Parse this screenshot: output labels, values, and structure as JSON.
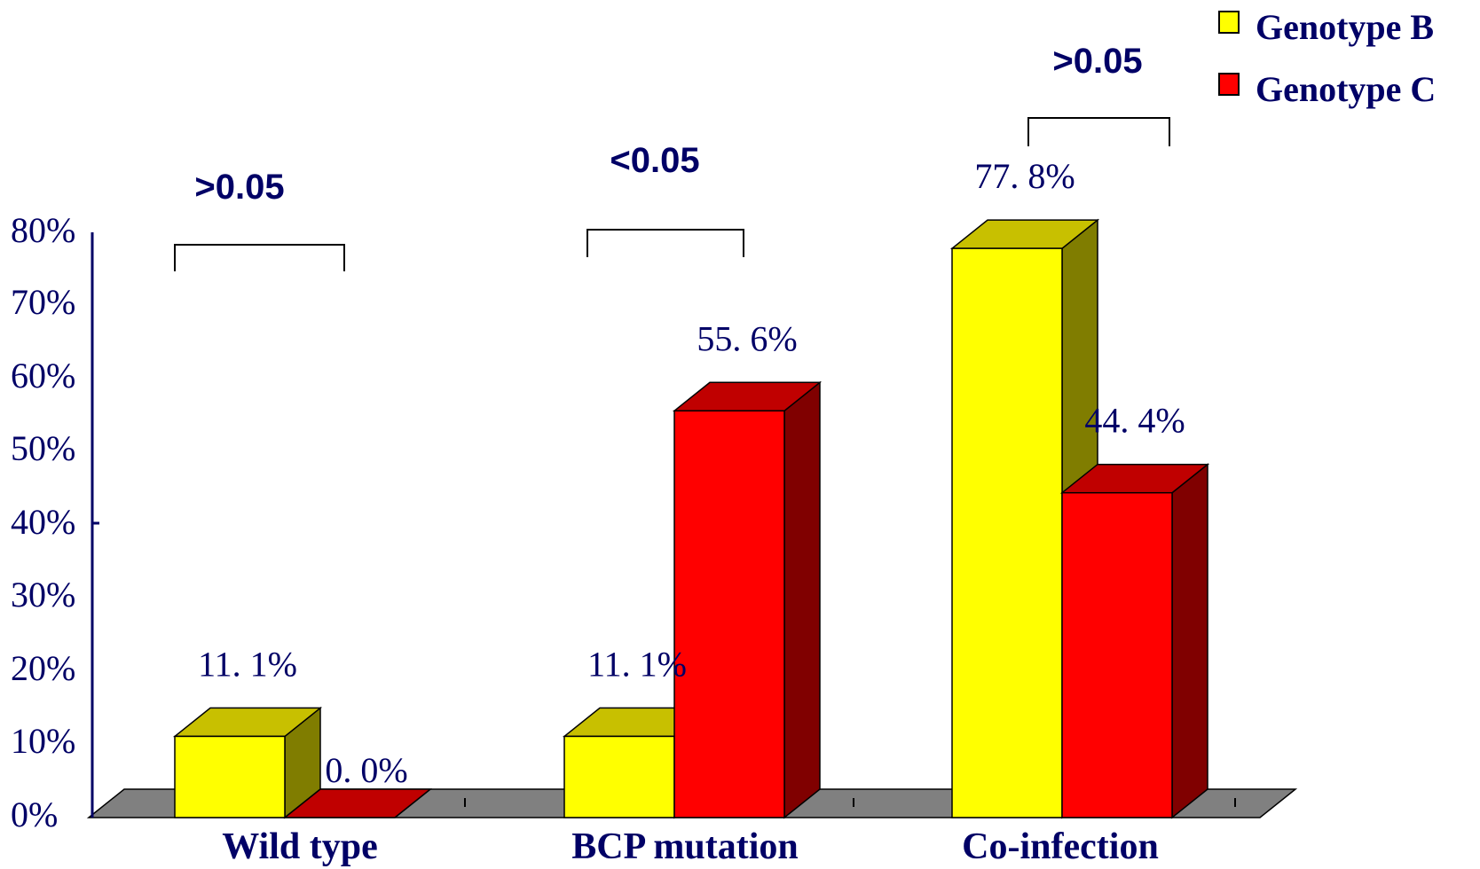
{
  "colors": {
    "genotype_b": "#ffff00",
    "genotype_b_top": "#c8c000",
    "genotype_b_side": "#807d00",
    "genotype_c": "#ff0000",
    "genotype_c_top": "#c00000",
    "genotype_c_side": "#800000",
    "floor": "#808080",
    "axis": "#000066",
    "text": "#000066"
  },
  "chart_data": {
    "type": "bar",
    "categories": [
      "Wild type",
      "BCP mutation",
      "Co-infection"
    ],
    "series": [
      {
        "name": "Genotype B",
        "values": [
          11.1,
          11.1,
          77.8
        ],
        "labels": [
          "11. 1%",
          "11. 1%",
          "77. 8%"
        ]
      },
      {
        "name": "Genotype C",
        "values": [
          0.0,
          55.6,
          44.4
        ],
        "labels": [
          "0. 0%",
          "55. 6%",
          "44. 4%"
        ]
      }
    ],
    "ylim": [
      0,
      80
    ],
    "yticks": [
      0,
      10,
      20,
      30,
      40,
      50,
      60,
      70,
      80
    ],
    "ytick_labels": [
      "0%",
      "10%",
      "20%",
      "30%",
      "40%",
      "50%",
      "60%",
      "70%",
      "80%"
    ],
    "p_values": [
      ">0.05",
      "<0.05",
      ">0.05"
    ],
    "legend_position": "top-right",
    "three_d": true,
    "grid": false
  }
}
